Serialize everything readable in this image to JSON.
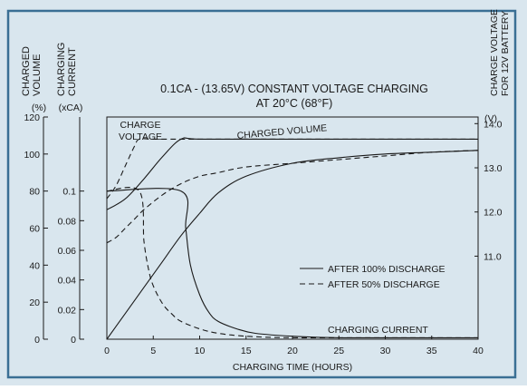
{
  "chart_data": {
    "type": "line",
    "title_line1": "0.1CA - (13.65V) CONSTANT VOLTAGE CHARGING",
    "title_line2": "AT 20°C (68°F)",
    "xlabel": "CHARGING TIME (HOURS)",
    "xlim": [
      0,
      40
    ],
    "x_ticks": [
      "0",
      "5",
      "10",
      "15",
      "20",
      "25",
      "30",
      "35",
      "40"
    ],
    "axes": {
      "charged_volume": {
        "label_line1": "CHARGED",
        "label_line2": "VOLUME",
        "unit": "(%)",
        "ylim": [
          0,
          120
        ],
        "ticks": [
          "0",
          "20",
          "40",
          "60",
          "80",
          "100",
          "120"
        ]
      },
      "charging_current": {
        "label_line1": "CHARGING",
        "label_line2": "CURRENT",
        "unit": "(xCA)",
        "ylim": [
          0,
          0.15
        ],
        "ticks": [
          "0",
          "0.02",
          "0.04",
          "0.06",
          "0.08",
          "0.1"
        ]
      },
      "charge_voltage": {
        "label_line1": "CHARGE VOLTAGE",
        "label_line2": "FOR 12V BATTERY",
        "unit": "(V)",
        "ylim": [
          9.12,
          14.15
        ],
        "ticks": [
          "11.0",
          "12.0",
          "13.0",
          "14.0"
        ]
      }
    },
    "annotations": {
      "charge_voltage_line1": "CHARGE",
      "charge_voltage_line2": "VOLTAGE",
      "charged_volume": "CHARGED VOLUME",
      "charging_current": "CHARGING CURRENT"
    },
    "legend": {
      "position": "right",
      "entries": [
        {
          "style": "solid",
          "label": "AFTER 100% DISCHARGE"
        },
        {
          "style": "dashed",
          "label": "AFTER 50% DISCHARGE"
        }
      ]
    },
    "series": [
      {
        "quantity": "charged volume",
        "axis": "charged_volume",
        "style": "solid",
        "x": [
          0,
          2,
          4,
          6,
          8,
          10,
          12,
          15,
          20,
          25,
          30,
          35,
          40
        ],
        "y": [
          0,
          14,
          28,
          42,
          56,
          68,
          79,
          88,
          95,
          98,
          100,
          101,
          102
        ]
      },
      {
        "quantity": "charged volume",
        "axis": "charged_volume",
        "style": "dashed",
        "x": [
          0,
          1,
          2,
          3,
          4,
          6,
          8,
          10,
          12,
          15,
          20,
          25,
          30,
          35,
          40
        ],
        "y": [
          52,
          55,
          60,
          65,
          70,
          78,
          84,
          88,
          90,
          93,
          95,
          97,
          99,
          101,
          102
        ]
      },
      {
        "quantity": "charging current",
        "axis": "charging_current",
        "style": "solid",
        "x": [
          0,
          8,
          8.5,
          9,
          10,
          11,
          12,
          14,
          16,
          20,
          25,
          30,
          40
        ],
        "y": [
          0.1,
          0.1,
          0.075,
          0.05,
          0.03,
          0.018,
          0.012,
          0.007,
          0.004,
          0.002,
          0.001,
          0.001,
          0.001
        ]
      },
      {
        "quantity": "charging current",
        "axis": "charging_current",
        "style": "dashed",
        "x": [
          0,
          3.5,
          4,
          4.5,
          5,
          6,
          7,
          8,
          10,
          12,
          15,
          20,
          30,
          40
        ],
        "y": [
          0.1,
          0.1,
          0.066,
          0.047,
          0.036,
          0.024,
          0.017,
          0.012,
          0.007,
          0.004,
          0.002,
          0.001,
          0.001,
          0.001
        ]
      },
      {
        "quantity": "charge voltage",
        "axis": "charge_voltage",
        "style": "solid",
        "x": [
          0,
          2,
          4,
          6,
          8,
          10,
          20,
          30,
          40
        ],
        "y": [
          12.05,
          12.3,
          12.75,
          13.25,
          13.65,
          13.65,
          13.65,
          13.65,
          13.65
        ]
      },
      {
        "quantity": "charge voltage",
        "axis": "charge_voltage",
        "style": "dashed",
        "x": [
          0,
          1,
          2,
          3,
          3.5,
          5,
          8,
          20,
          40
        ],
        "y": [
          12.3,
          12.6,
          13.05,
          13.5,
          13.65,
          13.65,
          13.65,
          13.65,
          13.65
        ]
      }
    ]
  },
  "colors": {
    "background": "#d9e6ee",
    "border": "#3a6f94",
    "line": "#1a1a1a"
  }
}
